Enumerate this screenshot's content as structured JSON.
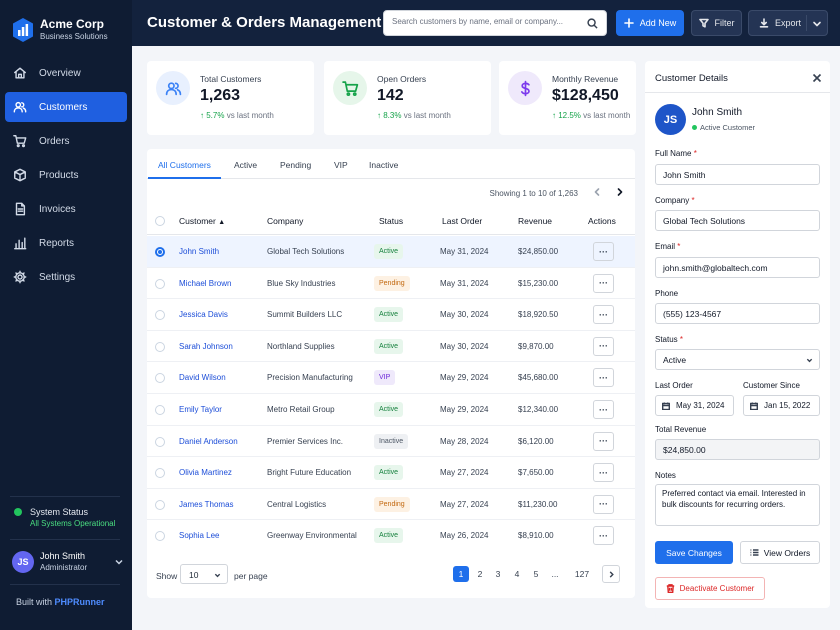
{
  "brand": {
    "name": "Acme Corp",
    "subtitle": "Business Solutions"
  },
  "nav": [
    {
      "label": "Overview",
      "icon": "home-icon"
    },
    {
      "label": "Customers",
      "icon": "users-icon",
      "active": true
    },
    {
      "label": "Orders",
      "icon": "cart-icon"
    },
    {
      "label": "Products",
      "icon": "box-icon"
    },
    {
      "label": "Invoices",
      "icon": "document-icon"
    },
    {
      "label": "Reports",
      "icon": "bar-chart-icon"
    },
    {
      "label": "Settings",
      "icon": "gear-icon"
    }
  ],
  "system": {
    "title": "System Status",
    "status": "All Systems Operational"
  },
  "user": {
    "initials": "JS",
    "name": "John Smith",
    "role": "Administrator"
  },
  "footer": {
    "built_with": "Built with",
    "product": "PHPRunner"
  },
  "header": {
    "title": "Customer & Orders Management",
    "search_placeholder": "Search customers by name, email or company...",
    "add_label": "Add New",
    "filter_label": "Filter",
    "export_label": "Export"
  },
  "stats": [
    {
      "label": "Total Customers",
      "value": "1,263",
      "delta": "5.7%",
      "suffix": "vs last month",
      "icon": "users-icon",
      "color": "#3b82f6",
      "bg": "#e8f0fe"
    },
    {
      "label": "Open Orders",
      "value": "142",
      "delta": "8.3%",
      "suffix": "vs last month",
      "icon": "cart-icon",
      "color": "#16a34a",
      "bg": "#e6f6ea"
    },
    {
      "label": "Monthly Revenue",
      "value": "$128,450",
      "delta": "12.5%",
      "suffix": "vs last month",
      "icon": "dollar-icon",
      "color": "#7c3aed",
      "bg": "#efe9fb"
    }
  ],
  "tabs": [
    "All Customers",
    "Active",
    "Pending",
    "VIP",
    "Inactive"
  ],
  "table": {
    "showing": "Showing 1 to 10 of 1,263",
    "columns": [
      "Customer",
      "Company",
      "Status",
      "Last Order",
      "Revenue",
      "Actions"
    ],
    "rows": [
      {
        "name": "John Smith",
        "company": "Global Tech Solutions",
        "status": "Active",
        "last_order": "May 31, 2024",
        "revenue": "$24,850.00",
        "selected": true
      },
      {
        "name": "Michael Brown",
        "company": "Blue Sky Industries",
        "status": "Pending",
        "last_order": "May 31, 2024",
        "revenue": "$15,230.00"
      },
      {
        "name": "Jessica Davis",
        "company": "Summit Builders LLC",
        "status": "Active",
        "last_order": "May 30, 2024",
        "revenue": "$18,920.50"
      },
      {
        "name": "Sarah Johnson",
        "company": "Northland Supplies",
        "status": "Active",
        "last_order": "May 30, 2024",
        "revenue": "$9,870.00"
      },
      {
        "name": "David Wilson",
        "company": "Precision Manufacturing",
        "status": "VIP",
        "last_order": "May 29, 2024",
        "revenue": "$45,680.00"
      },
      {
        "name": "Emily Taylor",
        "company": "Metro Retail Group",
        "status": "Active",
        "last_order": "May 29, 2024",
        "revenue": "$12,340.00"
      },
      {
        "name": "Daniel Anderson",
        "company": "Premier Services Inc.",
        "status": "Inactive",
        "last_order": "May 28, 2024",
        "revenue": "$6,120.00"
      },
      {
        "name": "Olivia Martinez",
        "company": "Bright Future Education",
        "status": "Active",
        "last_order": "May 27, 2024",
        "revenue": "$7,650.00"
      },
      {
        "name": "James Thomas",
        "company": "Central Logistics",
        "status": "Pending",
        "last_order": "May 27, 2024",
        "revenue": "$11,230.00"
      },
      {
        "name": "Sophia Lee",
        "company": "Greenway Environmental",
        "status": "Active",
        "last_order": "May 26, 2024",
        "revenue": "$8,910.00"
      }
    ],
    "actions_glyph": "···"
  },
  "status_colors": {
    "Active": {
      "bg": "#e7f6ec",
      "fg": "#15803d"
    },
    "Pending": {
      "bg": "#fdf1e3",
      "fg": "#c2680f"
    },
    "VIP": {
      "bg": "#efe9fb",
      "fg": "#6d28d9"
    },
    "Inactive": {
      "bg": "#eef0f3",
      "fg": "#4b5563"
    }
  },
  "pagination": {
    "show_label": "Show",
    "per_page": "10",
    "per_page_label": "per page",
    "pages": [
      "1",
      "2",
      "3",
      "4",
      "5",
      "...",
      "127"
    ],
    "current": "1"
  },
  "details": {
    "title": "Customer Details",
    "initials": "JS",
    "name": "John Smith",
    "status": "Active Customer",
    "full_name_label": "Full Name",
    "full_name": "John Smith",
    "company_label": "Company",
    "company": "Global Tech Solutions",
    "email_label": "Email",
    "email": "john.smith@globaltech.com",
    "phone_label": "Phone",
    "phone": "(555) 123-4567",
    "status_label": "Status",
    "status_value": "Active",
    "last_order_label": "Last Order",
    "last_order": "May 31, 2024",
    "since_label": "Customer Since",
    "since": "Jan 15, 2022",
    "revenue_label": "Total Revenue",
    "revenue": "$24,850.00",
    "notes_label": "Notes",
    "notes": "Preferred contact via email.  Interested in bulk discounts for recurring orders.",
    "save_label": "Save Changes",
    "view_orders_label": "View Orders",
    "deactivate_label": "Deactivate Customer",
    "required_mark": "*"
  }
}
